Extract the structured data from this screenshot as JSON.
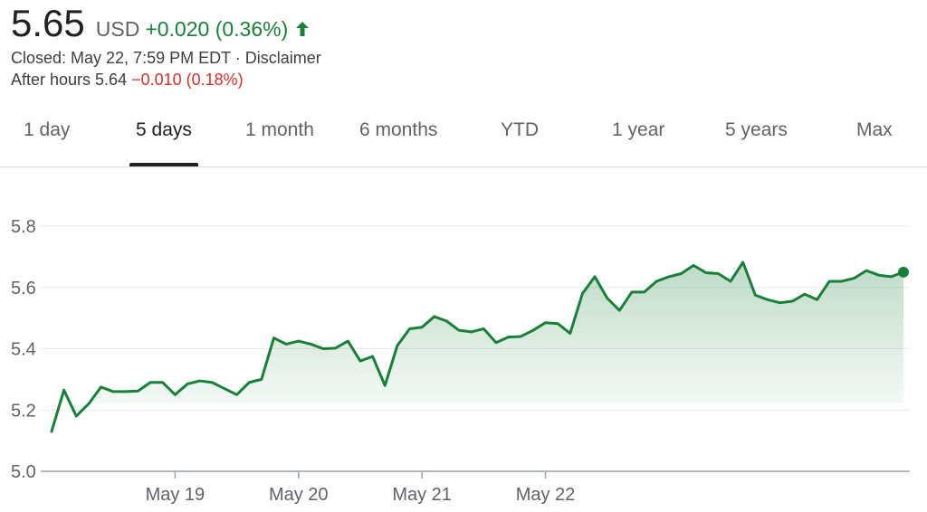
{
  "quote": {
    "price": "5.65",
    "currency": "USD",
    "change": "+0.020 (0.36%)",
    "closed_text": "Closed: May 22, 7:59 PM EDT",
    "separator": " · ",
    "disclaimer": "Disclaimer",
    "after_hours_label": "After hours 5.64",
    "after_hours_change": "−0.010 (0.18%)",
    "up_color": "#188038",
    "down_color": "#d93025"
  },
  "tabs": [
    {
      "label": "1 day"
    },
    {
      "label": "5 days"
    },
    {
      "label": "1 month"
    },
    {
      "label": "6 months"
    },
    {
      "label": "YTD"
    },
    {
      "label": "1 year"
    },
    {
      "label": "5 years"
    },
    {
      "label": "Max"
    }
  ],
  "active_tab": "5 days",
  "chart_data": {
    "type": "area",
    "title": "",
    "xlabel": "",
    "ylabel": "",
    "ylim": [
      5.0,
      5.8
    ],
    "yticks": [
      "5.8",
      "5.6",
      "5.4",
      "5.2",
      "5.0"
    ],
    "ytick_values": [
      5.8,
      5.6,
      5.4,
      5.2,
      5.0
    ],
    "xticks": [
      "May 19",
      "May 20",
      "May 21",
      "May 22"
    ],
    "xtick_index": [
      10,
      20,
      30,
      40
    ],
    "grid": true,
    "line_color": "#188038",
    "series": [
      {
        "values": [
          5.13,
          5.265,
          5.18,
          5.22,
          5.275,
          5.26,
          5.26,
          5.262,
          5.29,
          5.29,
          5.25,
          5.285,
          5.295,
          5.29,
          5.27,
          5.25,
          5.29,
          5.3,
          5.435,
          5.415,
          5.425,
          5.415,
          5.4,
          5.402,
          5.425,
          5.36,
          5.375,
          5.28,
          5.41,
          5.465,
          5.47,
          5.505,
          5.49,
          5.46,
          5.455,
          5.465,
          5.42,
          5.438,
          5.44,
          5.46,
          5.485,
          5.482,
          5.45,
          5.58,
          5.635,
          5.565,
          5.525,
          5.585,
          5.585,
          5.62,
          5.635,
          5.645,
          5.672,
          5.648,
          5.645,
          5.62,
          5.682,
          5.575,
          5.56,
          5.55,
          5.555,
          5.578,
          5.56,
          5.62,
          5.62,
          5.63,
          5.655,
          5.64,
          5.635,
          5.65
        ]
      }
    ]
  }
}
